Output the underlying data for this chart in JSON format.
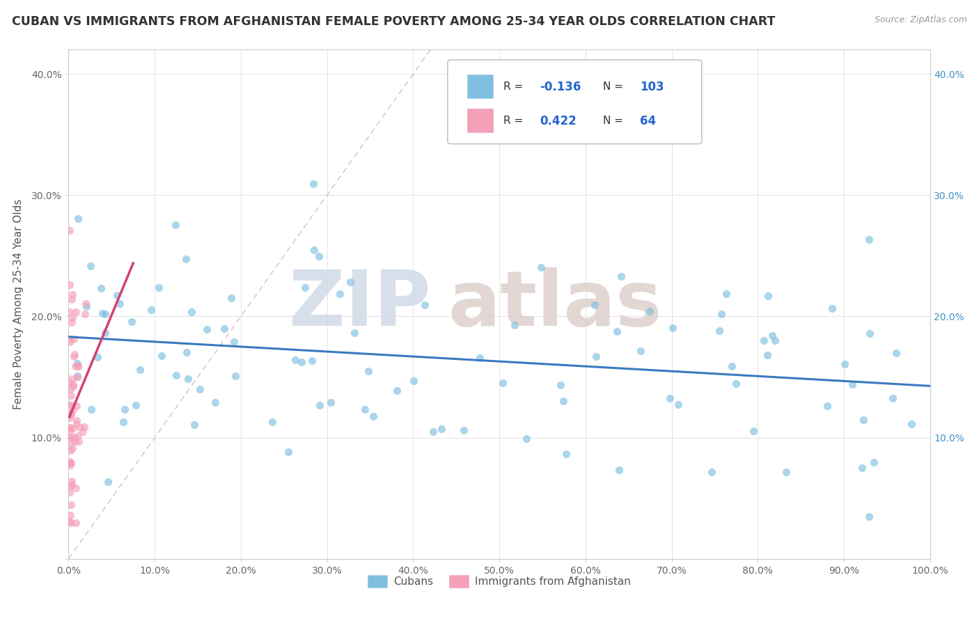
{
  "title": "CUBAN VS IMMIGRANTS FROM AFGHANISTAN FEMALE POVERTY AMONG 25-34 YEAR OLDS CORRELATION CHART",
  "source": "Source: ZipAtlas.com",
  "ylabel": "Female Poverty Among 25-34 Year Olds",
  "xlim": [
    0.0,
    1.0
  ],
  "ylim": [
    0.0,
    0.42
  ],
  "xticks": [
    0.0,
    0.1,
    0.2,
    0.3,
    0.4,
    0.5,
    0.6,
    0.7,
    0.8,
    0.9,
    1.0
  ],
  "xticklabels": [
    "0.0%",
    "10.0%",
    "20.0%",
    "30.0%",
    "40.0%",
    "50.0%",
    "60.0%",
    "70.0%",
    "80.0%",
    "90.0%",
    "100.0%"
  ],
  "yticks": [
    0.0,
    0.1,
    0.2,
    0.3,
    0.4
  ],
  "yticklabels_left": [
    "",
    "10.0%",
    "20.0%",
    "30.0%",
    "40.0%"
  ],
  "yticklabels_right": [
    "",
    "10.0%",
    "20.0%",
    "30.0%",
    "40.0%"
  ],
  "legend_label1": "Cubans",
  "legend_label2": "Immigrants from Afghanistan",
  "R1": "-0.136",
  "N1": "103",
  "R2": "0.422",
  "N2": "64",
  "color1": "#7fbfdf",
  "color2": "#f4a0b8",
  "trendline1_color": "#3a7abf",
  "trendline2_color": "#d44070",
  "diag_color": "#e0b0c0",
  "background_color": "#ffffff",
  "watermark_zip_color": "#d0dae8",
  "watermark_atlas_color": "#ddd0cc"
}
